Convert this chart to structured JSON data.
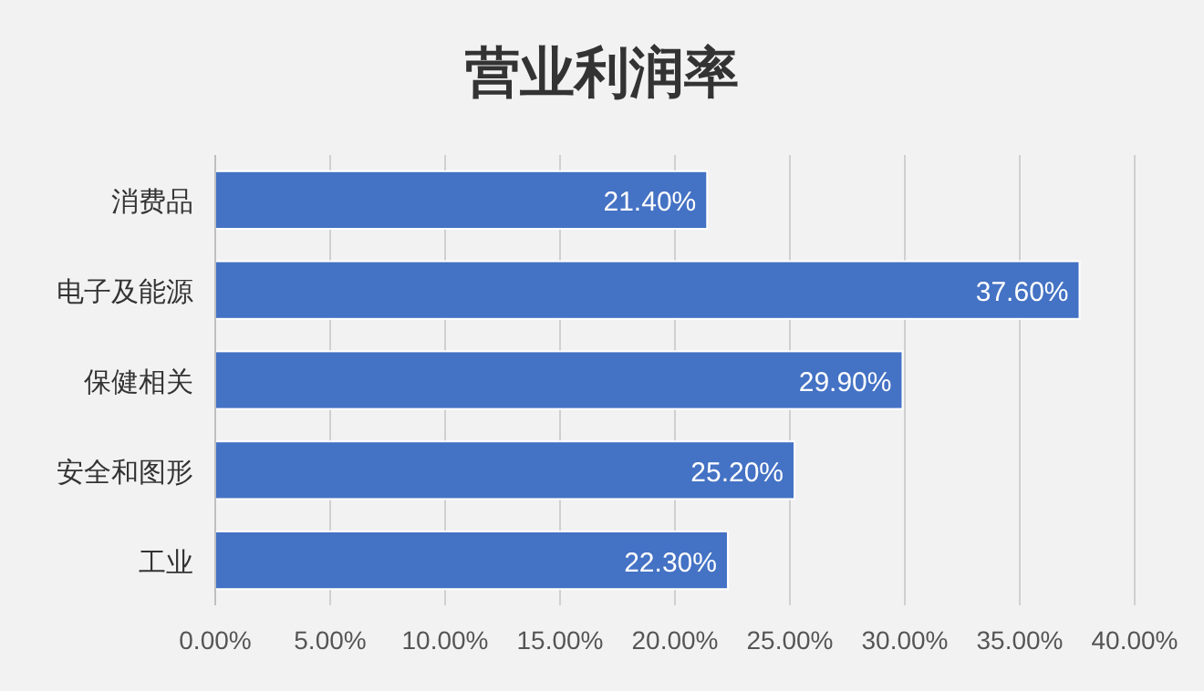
{
  "chart_data": {
    "type": "bar",
    "orientation": "horizontal",
    "title": "营业利润率",
    "categories": [
      "消费品",
      "电子及能源",
      "保健相关",
      "安全和图形",
      "工业"
    ],
    "values": [
      21.4,
      37.6,
      29.9,
      25.2,
      22.3
    ],
    "value_labels": [
      "21.40%",
      "37.60%",
      "29.90%",
      "25.20%",
      "22.30%"
    ],
    "color": "#4472c4",
    "xlim": [
      0,
      40
    ],
    "xticks": [
      {
        "value": 0,
        "label": "0.00%"
      },
      {
        "value": 5,
        "label": "5.00%"
      },
      {
        "value": 10,
        "label": "10.00%"
      },
      {
        "value": 15,
        "label": "15.00%"
      },
      {
        "value": 20,
        "label": "20.00%"
      },
      {
        "value": 25,
        "label": "25.00%"
      },
      {
        "value": 30,
        "label": "30.00%"
      },
      {
        "value": 35,
        "label": "35.00%"
      },
      {
        "value": 40,
        "label": "40.00%"
      }
    ],
    "grid": "x"
  }
}
